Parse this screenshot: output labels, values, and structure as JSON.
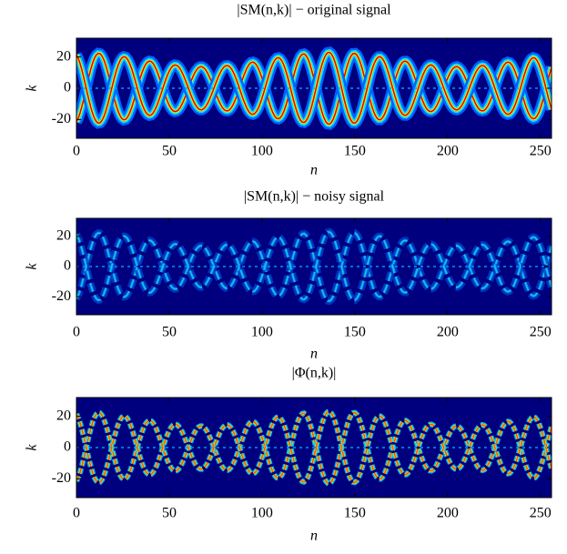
{
  "chart_data": [
    {
      "type": "heatmap",
      "title": "|SM(n,k)| − original signal",
      "xlabel": "n",
      "ylabel": "k",
      "xlim": [
        0,
        256
      ],
      "ylim": [
        -32,
        32
      ],
      "xticks": [
        0,
        50,
        100,
        150,
        200,
        250
      ],
      "yticks": [
        -20,
        0,
        20
      ]
    },
    {
      "type": "heatmap",
      "title": "|SM(n,k)| − noisy signal",
      "xlabel": "n",
      "ylabel": "k",
      "xlim": [
        0,
        256
      ],
      "ylim": [
        -32,
        32
      ],
      "xticks": [
        0,
        50,
        100,
        150,
        200,
        250
      ],
      "yticks": [
        -20,
        0,
        20
      ]
    },
    {
      "type": "heatmap",
      "title": "|Φ(n,k)|",
      "xlabel": "n",
      "ylabel": "k",
      "xlim": [
        0,
        256
      ],
      "ylim": [
        -32,
        32
      ],
      "xticks": [
        0,
        50,
        100,
        150,
        200,
        250
      ],
      "yticks": [
        -20,
        0,
        20
      ]
    }
  ]
}
